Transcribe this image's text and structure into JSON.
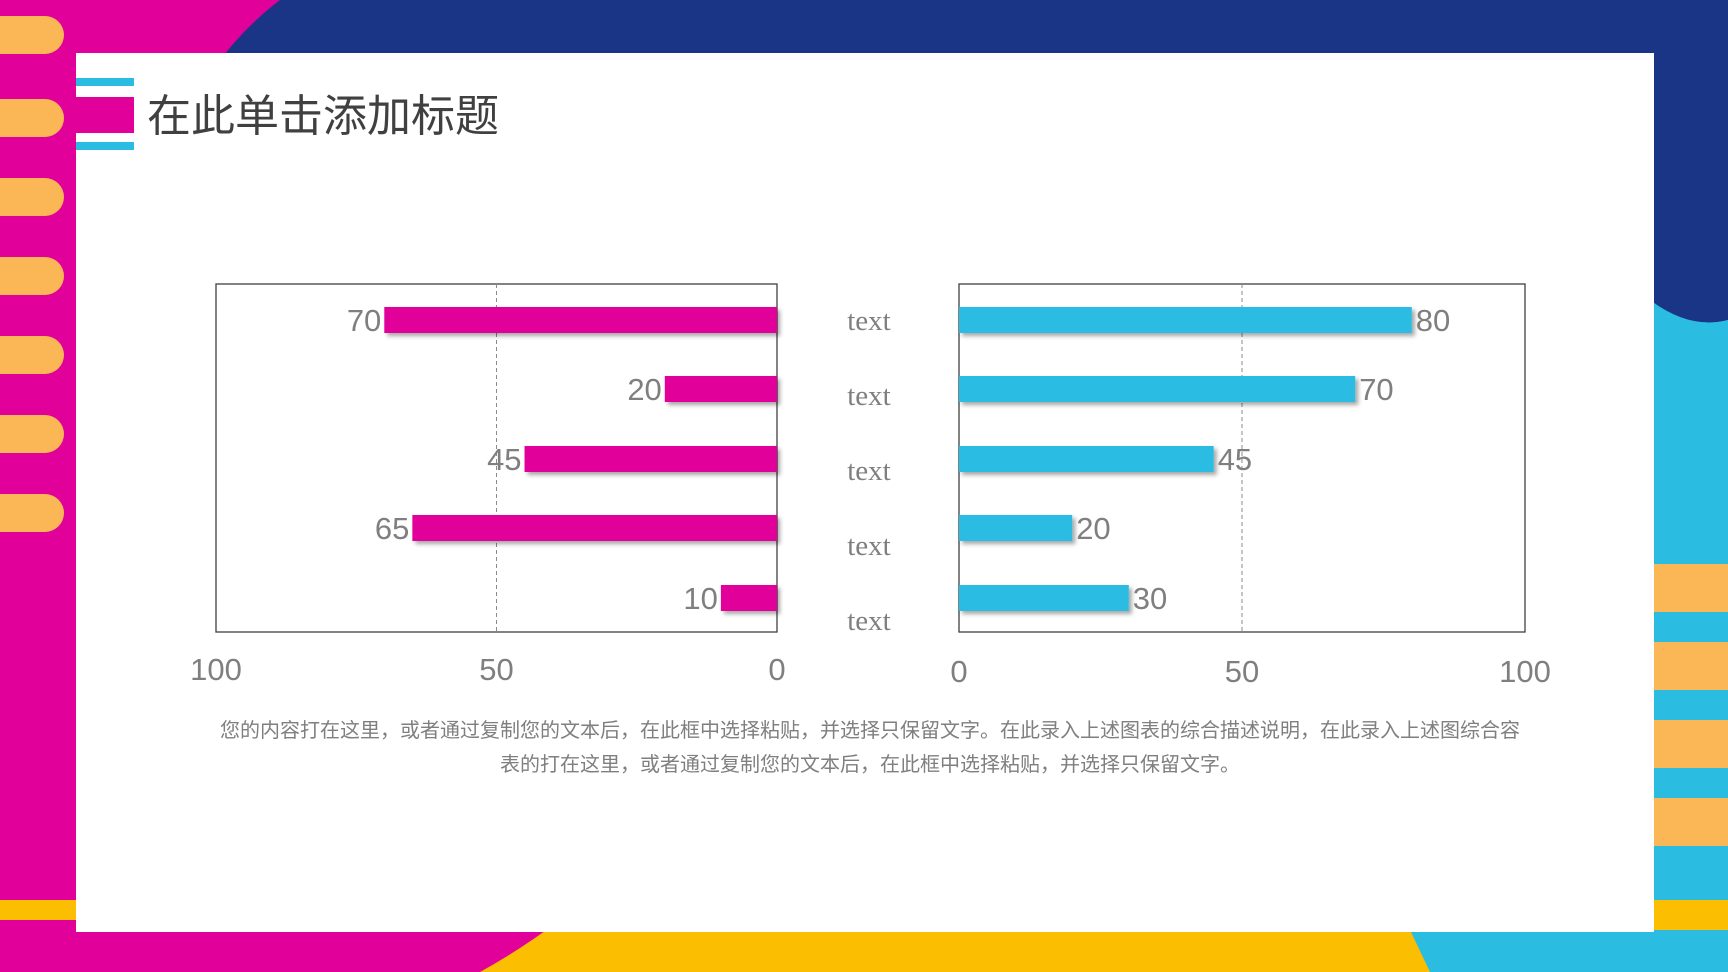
{
  "slide": {
    "title": "在此单击添加标题",
    "description": "您的内容打在这里，或者通过复制您的文本后，在此框中选择粘贴，并选择只保留文字。在此录入上述图表的综合描述说明，在此录入上述图综合容表的打在这里，或者通过复制您的文本后，在此框中选择粘贴，并选择只保留文字。",
    "colors": {
      "magenta": "#E2009A",
      "navy": "#1B3586",
      "cyan": "#2BBCE2",
      "yellow": "#FBBE00",
      "orange_pill": "#FBB755",
      "text_gray": "#7F7F7F"
    }
  },
  "chart_data": [
    {
      "type": "bar",
      "orientation": "horizontal-reversed",
      "categories": [
        "text",
        "text",
        "text",
        "text",
        "text"
      ],
      "values": [
        70,
        20,
        45,
        65,
        10
      ],
      "xlim": [
        0,
        100
      ],
      "x_ticks": [
        "100",
        "50",
        "0"
      ],
      "grid": "vertical dashed at 50",
      "color": "#E2009A",
      "data_labels": true
    },
    {
      "type": "bar",
      "orientation": "horizontal",
      "categories": [
        "text",
        "text",
        "text",
        "text",
        "text"
      ],
      "values": [
        80,
        70,
        45,
        20,
        30
      ],
      "xlim": [
        0,
        100
      ],
      "x_ticks": [
        "0",
        "50",
        "100"
      ],
      "grid": "vertical dashed at 50",
      "color": "#2BBCE2",
      "data_labels": true
    }
  ]
}
